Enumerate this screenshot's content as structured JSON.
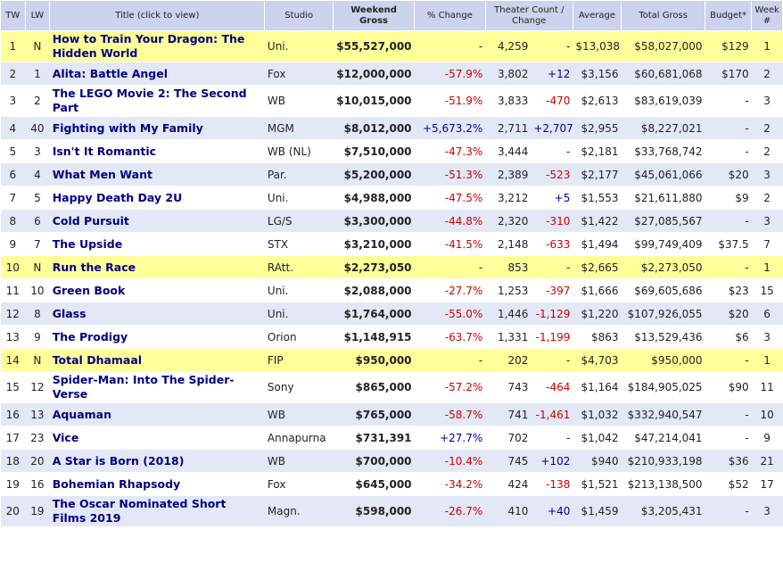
{
  "headers": {
    "tw": "TW",
    "lw": "LW",
    "title": "Title (click to view)",
    "studio": "Studio",
    "weekend": "Weekend Gross",
    "pct": "% Change",
    "theater_line1": "Theater Count /",
    "theater_line2": "Change",
    "average": "Average",
    "total": "Total Gross",
    "budget": "Budget*",
    "week_line1": "Week",
    "week_line2": "#"
  },
  "rows": [
    {
      "tw": "1",
      "lw": "N",
      "title": "How to Train Your Dragon: The Hidden World",
      "studio": "Uni.",
      "weekend": "$55,527,000",
      "pct": "-",
      "theaters": "4,259",
      "tchange": "-",
      "average": "$13,038",
      "total": "$58,027,000",
      "budget": "$129",
      "week": "1"
    },
    {
      "tw": "2",
      "lw": "1",
      "title": "Alita: Battle Angel",
      "studio": "Fox",
      "weekend": "$12,000,000",
      "pct": "-57.9%",
      "theaters": "3,802",
      "tchange": "+12",
      "average": "$3,156",
      "total": "$60,681,068",
      "budget": "$170",
      "week": "2"
    },
    {
      "tw": "3",
      "lw": "2",
      "title": "The LEGO Movie 2: The Second Part",
      "studio": "WB",
      "weekend": "$10,015,000",
      "pct": "-51.9%",
      "theaters": "3,833",
      "tchange": "-470",
      "average": "$2,613",
      "total": "$83,619,039",
      "budget": "-",
      "week": "3"
    },
    {
      "tw": "4",
      "lw": "40",
      "title": "Fighting with My Family",
      "studio": "MGM",
      "weekend": "$8,012,000",
      "pct": "+5,673.2%",
      "theaters": "2,711",
      "tchange": "+2,707",
      "average": "$2,955",
      "total": "$8,227,021",
      "budget": "-",
      "week": "2"
    },
    {
      "tw": "5",
      "lw": "3",
      "title": "Isn't It Romantic",
      "studio": "WB (NL)",
      "weekend": "$7,510,000",
      "pct": "-47.3%",
      "theaters": "3,444",
      "tchange": "-",
      "average": "$2,181",
      "total": "$33,768,742",
      "budget": "-",
      "week": "2"
    },
    {
      "tw": "6",
      "lw": "4",
      "title": "What Men Want",
      "studio": "Par.",
      "weekend": "$5,200,000",
      "pct": "-51.3%",
      "theaters": "2,389",
      "tchange": "-523",
      "average": "$2,177",
      "total": "$45,061,066",
      "budget": "$20",
      "week": "3"
    },
    {
      "tw": "7",
      "lw": "5",
      "title": "Happy Death Day 2U",
      "studio": "Uni.",
      "weekend": "$4,988,000",
      "pct": "-47.5%",
      "theaters": "3,212",
      "tchange": "+5",
      "average": "$1,553",
      "total": "$21,611,880",
      "budget": "$9",
      "week": "2"
    },
    {
      "tw": "8",
      "lw": "6",
      "title": "Cold Pursuit",
      "studio": "LG/S",
      "weekend": "$3,300,000",
      "pct": "-44.8%",
      "theaters": "2,320",
      "tchange": "-310",
      "average": "$1,422",
      "total": "$27,085,567",
      "budget": "-",
      "week": "3"
    },
    {
      "tw": "9",
      "lw": "7",
      "title": "The Upside",
      "studio": "STX",
      "weekend": "$3,210,000",
      "pct": "-41.5%",
      "theaters": "2,148",
      "tchange": "-633",
      "average": "$1,494",
      "total": "$99,749,409",
      "budget": "$37.5",
      "week": "7"
    },
    {
      "tw": "10",
      "lw": "N",
      "title": "Run the Race",
      "studio": "RAtt.",
      "weekend": "$2,273,050",
      "pct": "-",
      "theaters": "853",
      "tchange": "-",
      "average": "$2,665",
      "total": "$2,273,050",
      "budget": "-",
      "week": "1"
    },
    {
      "tw": "11",
      "lw": "10",
      "title": "Green Book",
      "studio": "Uni.",
      "weekend": "$2,088,000",
      "pct": "-27.7%",
      "theaters": "1,253",
      "tchange": "-397",
      "average": "$1,666",
      "total": "$69,605,686",
      "budget": "$23",
      "week": "15"
    },
    {
      "tw": "12",
      "lw": "8",
      "title": "Glass",
      "studio": "Uni.",
      "weekend": "$1,764,000",
      "pct": "-55.0%",
      "theaters": "1,446",
      "tchange": "-1,129",
      "average": "$1,220",
      "total": "$107,926,055",
      "budget": "$20",
      "week": "6"
    },
    {
      "tw": "13",
      "lw": "9",
      "title": "The Prodigy",
      "studio": "Orion",
      "weekend": "$1,148,915",
      "pct": "-63.7%",
      "theaters": "1,331",
      "tchange": "-1,199",
      "average": "$863",
      "total": "$13,529,436",
      "budget": "$6",
      "week": "3"
    },
    {
      "tw": "14",
      "lw": "N",
      "title": "Total Dhamaal",
      "studio": "FIP",
      "weekend": "$950,000",
      "pct": "-",
      "theaters": "202",
      "tchange": "-",
      "average": "$4,703",
      "total": "$950,000",
      "budget": "-",
      "week": "1"
    },
    {
      "tw": "15",
      "lw": "12",
      "title": "Spider-Man: Into The Spider-Verse",
      "studio": "Sony",
      "weekend": "$865,000",
      "pct": "-57.2%",
      "theaters": "743",
      "tchange": "-464",
      "average": "$1,164",
      "total": "$184,905,025",
      "budget": "$90",
      "week": "11"
    },
    {
      "tw": "16",
      "lw": "13",
      "title": "Aquaman",
      "studio": "WB",
      "weekend": "$765,000",
      "pct": "-58.7%",
      "theaters": "741",
      "tchange": "-1,461",
      "average": "$1,032",
      "total": "$332,940,547",
      "budget": "-",
      "week": "10"
    },
    {
      "tw": "17",
      "lw": "23",
      "title": "Vice",
      "studio": "Annapurna",
      "weekend": "$731,391",
      "pct": "+27.7%",
      "theaters": "702",
      "tchange": "-",
      "average": "$1,042",
      "total": "$47,214,041",
      "budget": "-",
      "week": "9"
    },
    {
      "tw": "18",
      "lw": "20",
      "title": "A Star is Born (2018)",
      "studio": "WB",
      "weekend": "$700,000",
      "pct": "-10.4%",
      "theaters": "745",
      "tchange": "+102",
      "average": "$940",
      "total": "$210,933,198",
      "budget": "$36",
      "week": "21"
    },
    {
      "tw": "19",
      "lw": "16",
      "title": "Bohemian Rhapsody",
      "studio": "Fox",
      "weekend": "$645,000",
      "pct": "-34.2%",
      "theaters": "424",
      "tchange": "-138",
      "average": "$1,521",
      "total": "$213,138,500",
      "budget": "$52",
      "week": "17"
    },
    {
      "tw": "20",
      "lw": "19",
      "title": "The Oscar Nominated Short Films 2019",
      "studio": "Magn.",
      "weekend": "$598,000",
      "pct": "-26.7%",
      "theaters": "410",
      "tchange": "+40",
      "average": "$1,459",
      "total": "$3,205,431",
      "budget": "-",
      "week": "3"
    }
  ]
}
